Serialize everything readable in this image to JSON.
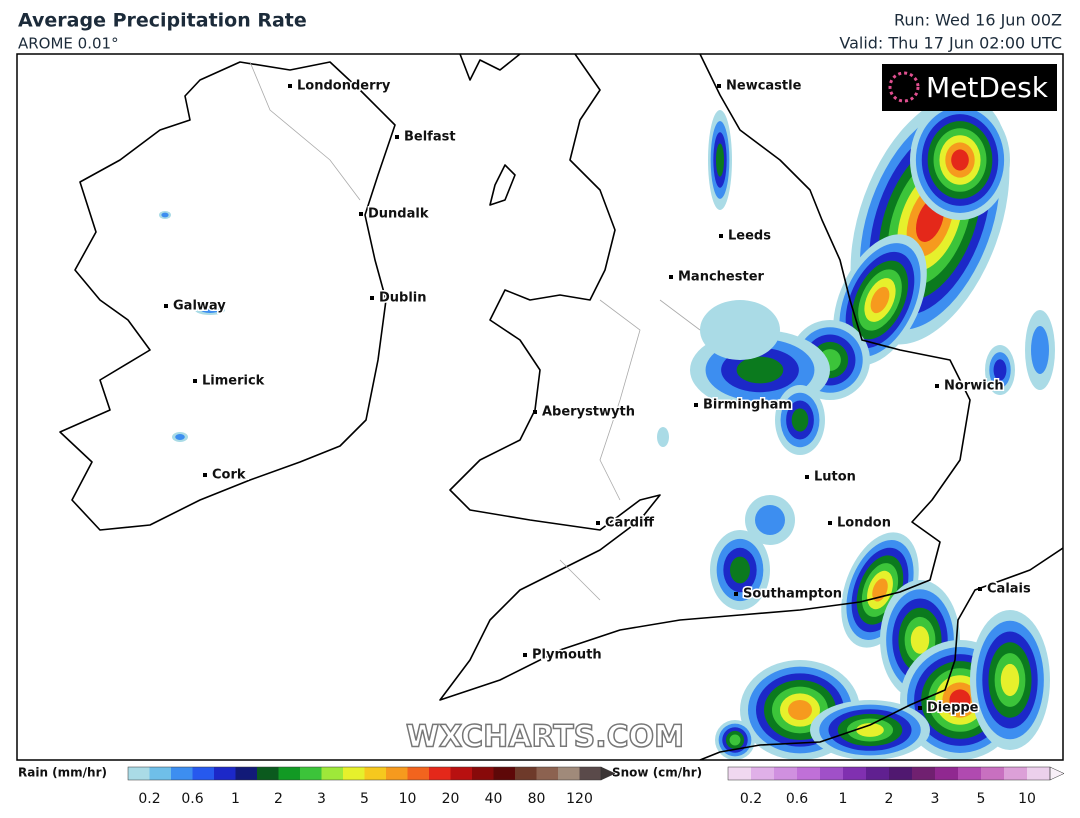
{
  "header": {
    "title": "Average Precipitation Rate",
    "model": "AROME 0.01°",
    "run": "Run: Wed 16 Jun 00Z",
    "valid": "Valid: Thu 17 Jun 02:00 UTC"
  },
  "logo": "MetDesk",
  "watermark": "WXCHARTS.COM",
  "cities": [
    "Londonderry",
    "Belfast",
    "Dundalk",
    "Dublin",
    "Galway",
    "Limerick",
    "Cork",
    "Newcastle",
    "Leeds",
    "Manchester",
    "Birmingham",
    "Aberystwyth",
    "Norwich",
    "Luton",
    "London",
    "Cardiff",
    "Southampton",
    "Plymouth",
    "Calais",
    "Dieppe"
  ],
  "legend": {
    "rain": {
      "label": "Rain (mm/hr)",
      "ticks": [
        0.2,
        0.6,
        1,
        2,
        3,
        5,
        10,
        20,
        40,
        80,
        120
      ],
      "colors": [
        "#aadbe6",
        "#6fbfe9",
        "#3d8ef0",
        "#2659ee",
        "#1c28c8",
        "#121a78",
        "#0b5a1e",
        "#129a24",
        "#3cc43a",
        "#9ee83a",
        "#e6f02c",
        "#f6c81e",
        "#f69a1e",
        "#f2641e",
        "#e4281a",
        "#b81010",
        "#880a0a",
        "#5e0808",
        "#6e3a2a",
        "#8c6250",
        "#a08a7a",
        "#5a4a4a"
      ]
    },
    "snow": {
      "label": "Snow (cm/hr)",
      "ticks": [
        0.2,
        0.6,
        1,
        2,
        3,
        5,
        10
      ],
      "colors": [
        "#f0d8f0",
        "#e0b0e8",
        "#d090e0",
        "#c070d8",
        "#a050c8",
        "#8030b0",
        "#602090",
        "#501870",
        "#702070",
        "#902890",
        "#b04ab0",
        "#c870c0",
        "#dca0d8",
        "#ecd0ec"
      ]
    }
  }
}
